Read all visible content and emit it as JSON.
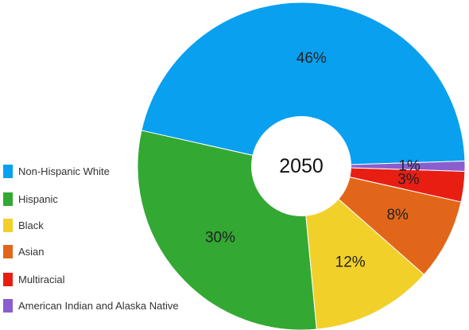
{
  "chart_data": {
    "type": "pie",
    "donut": true,
    "center_text": "2050",
    "slices": [
      {
        "name": "Non-Hispanic White",
        "value": 46,
        "label": "46%",
        "color": "#08A0EF"
      },
      {
        "name": "Hispanic",
        "value": 30,
        "label": "30%",
        "color": "#33A833"
      },
      {
        "name": "Black",
        "value": 12,
        "label": "12%",
        "color": "#F2D02A"
      },
      {
        "name": "Asian",
        "value": 8,
        "label": "8%",
        "color": "#E2661A"
      },
      {
        "name": "Multiracial",
        "value": 3,
        "label": "3%",
        "color": "#E81E13"
      },
      {
        "name": "American Indian and Alaska Native",
        "value": 1,
        "label": "1%",
        "color": "#8A5ECE"
      }
    ],
    "legend_position": "left",
    "legend": [
      {
        "name": "Non-Hispanic White",
        "color": "#08A0EF"
      },
      {
        "name": "Hispanic",
        "color": "#33A833"
      },
      {
        "name": "Black",
        "color": "#F2D02A"
      },
      {
        "name": "Asian",
        "color": "#E2661A"
      },
      {
        "name": "Multiracial",
        "color": "#E81E13"
      },
      {
        "name": "American Indian and Alaska Native",
        "color": "#8A5ECE"
      }
    ]
  }
}
